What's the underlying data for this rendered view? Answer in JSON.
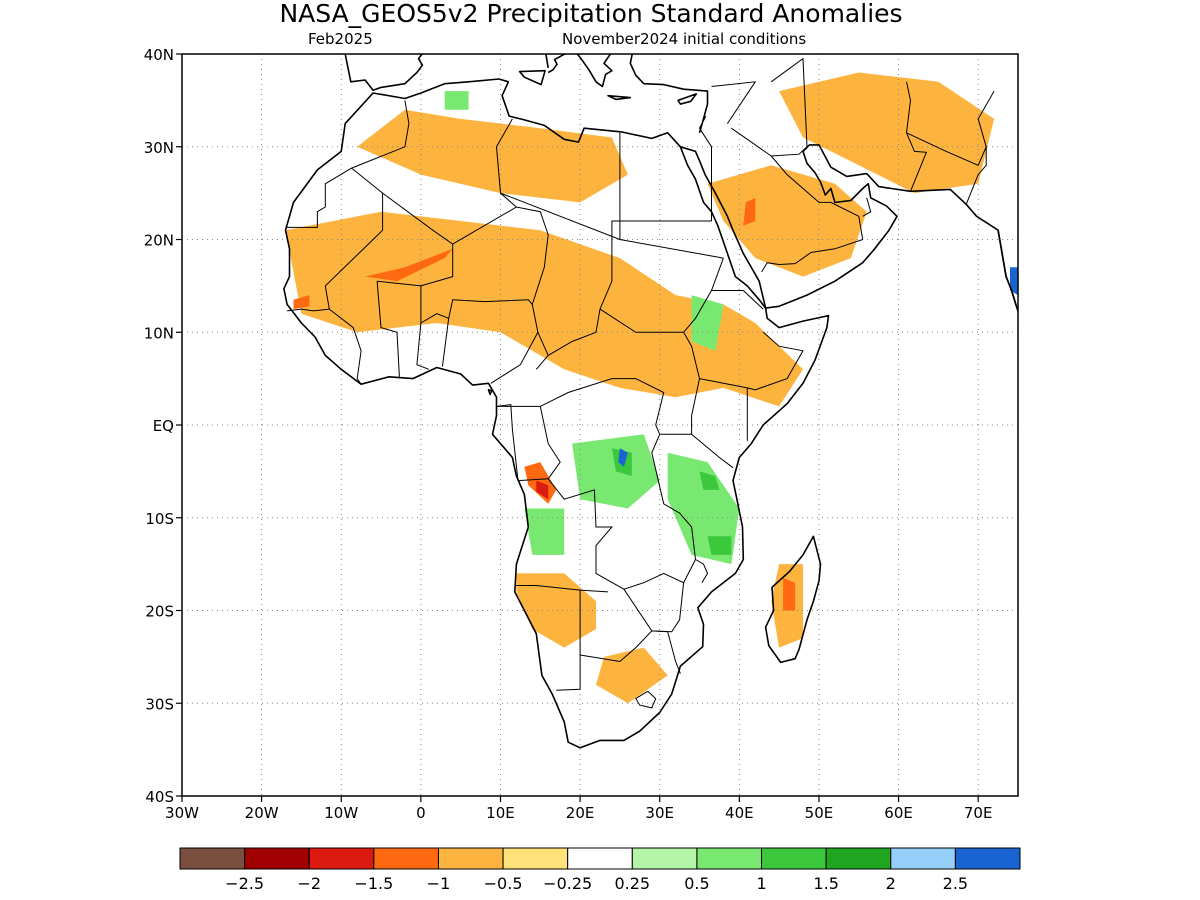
{
  "title": "NASA_GEOS5v2 Precipitation Standard Anomalies",
  "subtitle_left": "Feb2025",
  "subtitle_right": "November2024 initial conditions",
  "map": {
    "lon_range": [
      -30,
      75
    ],
    "lat_range": [
      -40,
      40
    ],
    "lat_ticks": [
      {
        "value": 40,
        "label": "40N"
      },
      {
        "value": 30,
        "label": "30N"
      },
      {
        "value": 20,
        "label": "20N"
      },
      {
        "value": 10,
        "label": "10N"
      },
      {
        "value": 0,
        "label": "EQ"
      },
      {
        "value": -10,
        "label": "10S"
      },
      {
        "value": -20,
        "label": "20S"
      },
      {
        "value": -30,
        "label": "30S"
      },
      {
        "value": -40,
        "label": "40S"
      }
    ],
    "lon_ticks": [
      {
        "value": -30,
        "label": "30W"
      },
      {
        "value": -20,
        "label": "20W"
      },
      {
        "value": -10,
        "label": "10W"
      },
      {
        "value": 0,
        "label": "0"
      },
      {
        "value": 10,
        "label": "10E"
      },
      {
        "value": 20,
        "label": "20E"
      },
      {
        "value": 30,
        "label": "30E"
      },
      {
        "value": 40,
        "label": "40E"
      },
      {
        "value": 50,
        "label": "50E"
      },
      {
        "value": 60,
        "label": "60E"
      },
      {
        "value": 70,
        "label": "70E"
      }
    ]
  },
  "colorbar": {
    "colors": [
      "#7a4f40",
      "#a00000",
      "#dc1a0f",
      "#ff6a10",
      "#fdb43f",
      "#ffe27a",
      "#ffffff",
      "#b4f5a8",
      "#78e870",
      "#3cc83c",
      "#1fa51f",
      "#96d0fa",
      "#1a64d2"
    ],
    "labels": [
      "−2.5",
      "−2",
      "−1.5",
      "−1",
      "−0.5",
      "−0.25",
      "0.25",
      "0.5",
      "1",
      "1.5",
      "2",
      "2.5"
    ]
  },
  "anomaly_regions": [
    {
      "level": "-0.5",
      "color": "#fdb43f",
      "pts": [
        [
          -17,
          21
        ],
        [
          -5,
          23
        ],
        [
          5,
          22
        ],
        [
          15,
          21
        ],
        [
          25,
          18
        ],
        [
          32,
          14
        ],
        [
          38,
          13
        ],
        [
          42,
          11
        ],
        [
          48,
          6
        ],
        [
          45,
          2
        ],
        [
          38,
          4
        ],
        [
          32,
          3
        ],
        [
          25,
          4
        ],
        [
          18,
          6
        ],
        [
          10,
          10
        ],
        [
          2,
          11
        ],
        [
          -8,
          10
        ],
        [
          -15,
          12
        ]
      ]
    },
    {
      "level": "-0.5",
      "color": "#fdb43f",
      "pts": [
        [
          -8,
          30
        ],
        [
          0,
          27
        ],
        [
          10,
          25
        ],
        [
          20,
          24
        ],
        [
          26,
          27
        ],
        [
          24,
          31
        ],
        [
          15,
          32
        ],
        [
          5,
          33
        ],
        [
          -2,
          34
        ]
      ]
    },
    {
      "level": "-0.5",
      "color": "#fdb43f",
      "pts": [
        [
          36,
          26
        ],
        [
          44,
          28
        ],
        [
          52,
          26
        ],
        [
          56,
          23
        ],
        [
          54,
          18
        ],
        [
          48,
          16
        ],
        [
          42,
          18
        ],
        [
          38,
          22
        ]
      ]
    },
    {
      "level": "-0.5",
      "color": "#fdb43f",
      "pts": [
        [
          45,
          36
        ],
        [
          55,
          38
        ],
        [
          65,
          37
        ],
        [
          72,
          33
        ],
        [
          70,
          26
        ],
        [
          62,
          25
        ],
        [
          55,
          28
        ],
        [
          48,
          31
        ]
      ]
    },
    {
      "level": "-0.5",
      "color": "#fdb43f",
      "pts": [
        [
          12,
          -16
        ],
        [
          18,
          -16
        ],
        [
          22,
          -19
        ],
        [
          22,
          -22
        ],
        [
          18,
          -24
        ],
        [
          14,
          -22
        ],
        [
          12,
          -18
        ]
      ]
    },
    {
      "level": "-0.5",
      "color": "#fdb43f",
      "pts": [
        [
          23,
          -25
        ],
        [
          28,
          -24
        ],
        [
          31,
          -27
        ],
        [
          26,
          -30
        ],
        [
          22,
          -28
        ]
      ]
    },
    {
      "level": "-0.5",
      "color": "#fdb43f",
      "pts": [
        [
          45,
          -15
        ],
        [
          48,
          -15
        ],
        [
          48,
          -23
        ],
        [
          45,
          -24
        ],
        [
          44,
          -19
        ]
      ]
    },
    {
      "level": "-1",
      "color": "#ff6a10",
      "pts": [
        [
          -7,
          16
        ],
        [
          -2,
          17
        ],
        [
          4,
          19
        ],
        [
          3,
          18
        ],
        [
          -3,
          15.5
        ]
      ]
    },
    {
      "level": "-1",
      "color": "#ff6a10",
      "pts": [
        [
          13,
          -4.5
        ],
        [
          15,
          -4
        ],
        [
          17,
          -7
        ],
        [
          16,
          -8.5
        ],
        [
          13.5,
          -6.5
        ]
      ]
    },
    {
      "level": "-1",
      "color": "#ff6a10",
      "pts": [
        [
          45.5,
          -16.5
        ],
        [
          47,
          -17
        ],
        [
          47,
          -20
        ],
        [
          45.5,
          -20
        ]
      ]
    },
    {
      "level": "-1",
      "color": "#ff6a10",
      "pts": [
        [
          40.5,
          21.5
        ],
        [
          42,
          22
        ],
        [
          42,
          24.5
        ],
        [
          40.8,
          24
        ]
      ]
    },
    {
      "level": "-1",
      "color": "#ff6a10",
      "pts": [
        [
          -16,
          13.5
        ],
        [
          -14,
          14
        ],
        [
          -14,
          12.8
        ],
        [
          -16,
          12.5
        ]
      ]
    },
    {
      "level": "-1.5",
      "color": "#dc1a0f",
      "pts": [
        [
          14.5,
          -6
        ],
        [
          16,
          -6.5
        ],
        [
          16,
          -8
        ],
        [
          14.5,
          -7.2
        ]
      ]
    },
    {
      "level": "0.5",
      "color": "#78e870",
      "pts": [
        [
          19,
          -2
        ],
        [
          28,
          -1
        ],
        [
          30,
          -6
        ],
        [
          26,
          -9
        ],
        [
          20,
          -8
        ]
      ]
    },
    {
      "level": "0.5",
      "color": "#78e870",
      "pts": [
        [
          31,
          -3
        ],
        [
          36,
          -4
        ],
        [
          40,
          -9
        ],
        [
          39,
          -15
        ],
        [
          34,
          -14
        ],
        [
          31,
          -8
        ]
      ]
    },
    {
      "level": "0.5",
      "color": "#78e870",
      "pts": [
        [
          13,
          -9
        ],
        [
          18,
          -9
        ],
        [
          18,
          -14
        ],
        [
          14,
          -14
        ]
      ]
    },
    {
      "level": "0.5",
      "color": "#78e870",
      "pts": [
        [
          3,
          36
        ],
        [
          6,
          36
        ],
        [
          6,
          34
        ],
        [
          3,
          34
        ]
      ]
    },
    {
      "level": "0.5",
      "color": "#78e870",
      "pts": [
        [
          34,
          14
        ],
        [
          38,
          13
        ],
        [
          37,
          8
        ],
        [
          34,
          9
        ]
      ]
    },
    {
      "level": "1",
      "color": "#3cc83c",
      "pts": [
        [
          24,
          -2.5
        ],
        [
          26.5,
          -3
        ],
        [
          26.5,
          -5.5
        ],
        [
          24.5,
          -5
        ]
      ]
    },
    {
      "level": "1",
      "color": "#3cc83c",
      "pts": [
        [
          35,
          -5
        ],
        [
          37,
          -5.5
        ],
        [
          37.5,
          -7
        ],
        [
          35.5,
          -7
        ]
      ]
    },
    {
      "level": "1",
      "color": "#3cc83c",
      "pts": [
        [
          36,
          -12
        ],
        [
          39,
          -12
        ],
        [
          39,
          -14
        ],
        [
          36.5,
          -14
        ]
      ]
    },
    {
      "level": "2",
      "color": "#1a64d2",
      "pts": [
        [
          25,
          -2.5
        ],
        [
          26,
          -3
        ],
        [
          25.5,
          -4.5
        ],
        [
          24.8,
          -4
        ]
      ]
    },
    {
      "level": "2",
      "color": "#1a64d2",
      "pts": [
        [
          74,
          17
        ],
        [
          75,
          17
        ],
        [
          75,
          14
        ],
        [
          74,
          14.5
        ]
      ]
    }
  ]
}
